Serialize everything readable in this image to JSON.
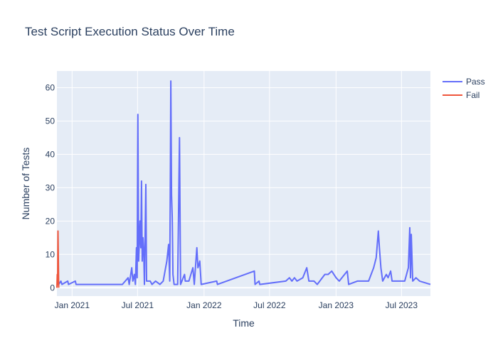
{
  "chart_data": {
    "type": "line",
    "title": "Test Script Execution Status Over Time",
    "xlabel": "Time",
    "ylabel": "Number of Tests",
    "x_range": [
      "2020-11-20",
      "2023-09-19"
    ],
    "ylim": [
      -2.5,
      65
    ],
    "x_ticks": [
      {
        "date": "2021-01-01",
        "label": "Jan 2021"
      },
      {
        "date": "2021-07-01",
        "label": "Jul 2021"
      },
      {
        "date": "2022-01-01",
        "label": "Jan 2022"
      },
      {
        "date": "2022-07-01",
        "label": "Jul 2022"
      },
      {
        "date": "2023-01-01",
        "label": "Jan 2023"
      },
      {
        "date": "2023-07-01",
        "label": "Jul 2023"
      }
    ],
    "y_ticks": [
      0,
      10,
      20,
      30,
      40,
      50,
      60
    ],
    "legend_position": "top-right",
    "grid": true,
    "colors": {
      "plot_bg": "#e5ecf6",
      "grid": "#ffffff",
      "text": "#2a3f5f"
    },
    "series": [
      {
        "name": "Pass",
        "color": "#636efa",
        "points": [
          [
            "2020-11-20",
            1
          ],
          [
            "2020-11-25",
            1
          ],
          [
            "2020-12-01",
            2
          ],
          [
            "2020-12-04",
            1
          ],
          [
            "2020-12-20",
            2
          ],
          [
            "2020-12-22",
            1
          ],
          [
            "2021-01-10",
            2
          ],
          [
            "2021-01-12",
            1
          ],
          [
            "2021-05-20",
            1
          ],
          [
            "2021-06-05",
            3
          ],
          [
            "2021-06-08",
            1
          ],
          [
            "2021-06-15",
            6
          ],
          [
            "2021-06-18",
            2
          ],
          [
            "2021-06-22",
            4
          ],
          [
            "2021-06-25",
            1
          ],
          [
            "2021-06-28",
            12
          ],
          [
            "2021-06-30",
            3
          ],
          [
            "2021-07-02",
            52
          ],
          [
            "2021-07-04",
            8
          ],
          [
            "2021-07-06",
            14
          ],
          [
            "2021-07-08",
            20
          ],
          [
            "2021-07-10",
            12
          ],
          [
            "2021-07-12",
            32
          ],
          [
            "2021-07-14",
            8
          ],
          [
            "2021-07-16",
            15
          ],
          [
            "2021-07-18",
            11
          ],
          [
            "2021-07-20",
            1
          ],
          [
            "2021-07-24",
            31
          ],
          [
            "2021-07-26",
            2
          ],
          [
            "2021-08-05",
            2
          ],
          [
            "2021-08-10",
            1
          ],
          [
            "2021-08-20",
            2
          ],
          [
            "2021-09-01",
            1
          ],
          [
            "2021-09-10",
            2
          ],
          [
            "2021-09-20",
            8
          ],
          [
            "2021-09-25",
            13
          ],
          [
            "2021-09-28",
            2
          ],
          [
            "2021-09-30",
            39
          ],
          [
            "2021-10-01",
            62
          ],
          [
            "2021-10-03",
            28
          ],
          [
            "2021-10-05",
            21
          ],
          [
            "2021-10-07",
            4
          ],
          [
            "2021-10-10",
            1
          ],
          [
            "2021-10-20",
            1
          ],
          [
            "2021-10-25",
            45
          ],
          [
            "2021-10-28",
            1
          ],
          [
            "2021-11-08",
            4
          ],
          [
            "2021-11-10",
            2
          ],
          [
            "2021-11-20",
            2
          ],
          [
            "2021-12-01",
            6
          ],
          [
            "2021-12-05",
            1
          ],
          [
            "2021-12-08",
            6
          ],
          [
            "2021-12-12",
            12
          ],
          [
            "2021-12-15",
            6
          ],
          [
            "2021-12-18",
            7
          ],
          [
            "2021-12-20",
            8
          ],
          [
            "2021-12-24",
            1
          ],
          [
            "2022-02-05",
            2
          ],
          [
            "2022-02-07",
            1
          ],
          [
            "2022-05-20",
            5
          ],
          [
            "2022-05-22",
            1
          ],
          [
            "2022-06-02",
            2
          ],
          [
            "2022-06-04",
            1
          ],
          [
            "2022-08-15",
            2
          ],
          [
            "2022-08-25",
            3
          ],
          [
            "2022-09-01",
            2
          ],
          [
            "2022-09-08",
            3
          ],
          [
            "2022-09-15",
            2
          ],
          [
            "2022-10-01",
            3
          ],
          [
            "2022-10-12",
            6
          ],
          [
            "2022-10-18",
            2
          ],
          [
            "2022-11-01",
            2
          ],
          [
            "2022-11-10",
            1
          ],
          [
            "2022-12-01",
            4
          ],
          [
            "2022-12-10",
            4
          ],
          [
            "2022-12-20",
            5
          ],
          [
            "2023-01-01",
            3
          ],
          [
            "2023-01-10",
            2
          ],
          [
            "2023-02-01",
            5
          ],
          [
            "2023-02-05",
            1
          ],
          [
            "2023-03-01",
            2
          ],
          [
            "2023-03-15",
            2
          ],
          [
            "2023-04-01",
            2
          ],
          [
            "2023-04-15",
            6
          ],
          [
            "2023-04-22",
            9
          ],
          [
            "2023-04-28",
            17
          ],
          [
            "2023-05-01",
            12
          ],
          [
            "2023-05-05",
            6
          ],
          [
            "2023-05-10",
            2
          ],
          [
            "2023-05-20",
            4
          ],
          [
            "2023-05-25",
            3
          ],
          [
            "2023-06-01",
            5
          ],
          [
            "2023-06-05",
            2
          ],
          [
            "2023-06-20",
            2
          ],
          [
            "2023-07-10",
            2
          ],
          [
            "2023-07-20",
            6
          ],
          [
            "2023-07-24",
            18
          ],
          [
            "2023-07-26",
            3
          ],
          [
            "2023-07-28",
            16
          ],
          [
            "2023-08-01",
            2
          ],
          [
            "2023-08-10",
            3
          ],
          [
            "2023-08-20",
            2
          ],
          [
            "2023-09-19",
            1
          ]
        ]
      },
      {
        "name": "Fail",
        "color": "#ef553b",
        "points": [
          [
            "2020-11-20",
            0
          ],
          [
            "2020-11-21",
            4
          ],
          [
            "2020-11-22",
            1
          ],
          [
            "2020-11-23",
            17
          ],
          [
            "2020-11-25",
            0
          ]
        ]
      }
    ]
  }
}
